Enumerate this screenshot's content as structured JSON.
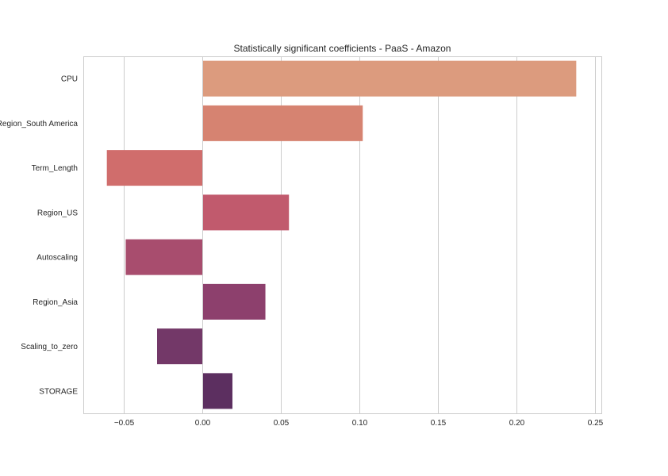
{
  "chart_data": {
    "type": "bar",
    "orientation": "horizontal",
    "title": "Statistically significant coefficients - PaaS - Amazon",
    "xlabel": "",
    "ylabel": "",
    "categories": [
      "CPU",
      "Region_South America",
      "Term_Length",
      "Region_US",
      "Autoscaling",
      "Region_Asia",
      "Scaling_to_zero",
      "STORAGE"
    ],
    "values": [
      0.238,
      0.102,
      -0.061,
      0.055,
      -0.049,
      0.04,
      -0.029,
      0.019
    ],
    "colors": [
      "#dc9b7e",
      "#d68371",
      "#d06d6c",
      "#c15a6d",
      "#a84d6e",
      "#8d406d",
      "#733868",
      "#5c2f60"
    ],
    "xlim": [
      -0.076,
      0.254
    ],
    "xticks": [
      -0.05,
      0.0,
      0.05,
      0.1,
      0.15,
      0.2,
      0.25
    ],
    "xtick_labels": [
      "−0.05",
      "0.00",
      "0.05",
      "0.10",
      "0.15",
      "0.20",
      "0.25"
    ],
    "grid": "x",
    "legend": "none"
  }
}
